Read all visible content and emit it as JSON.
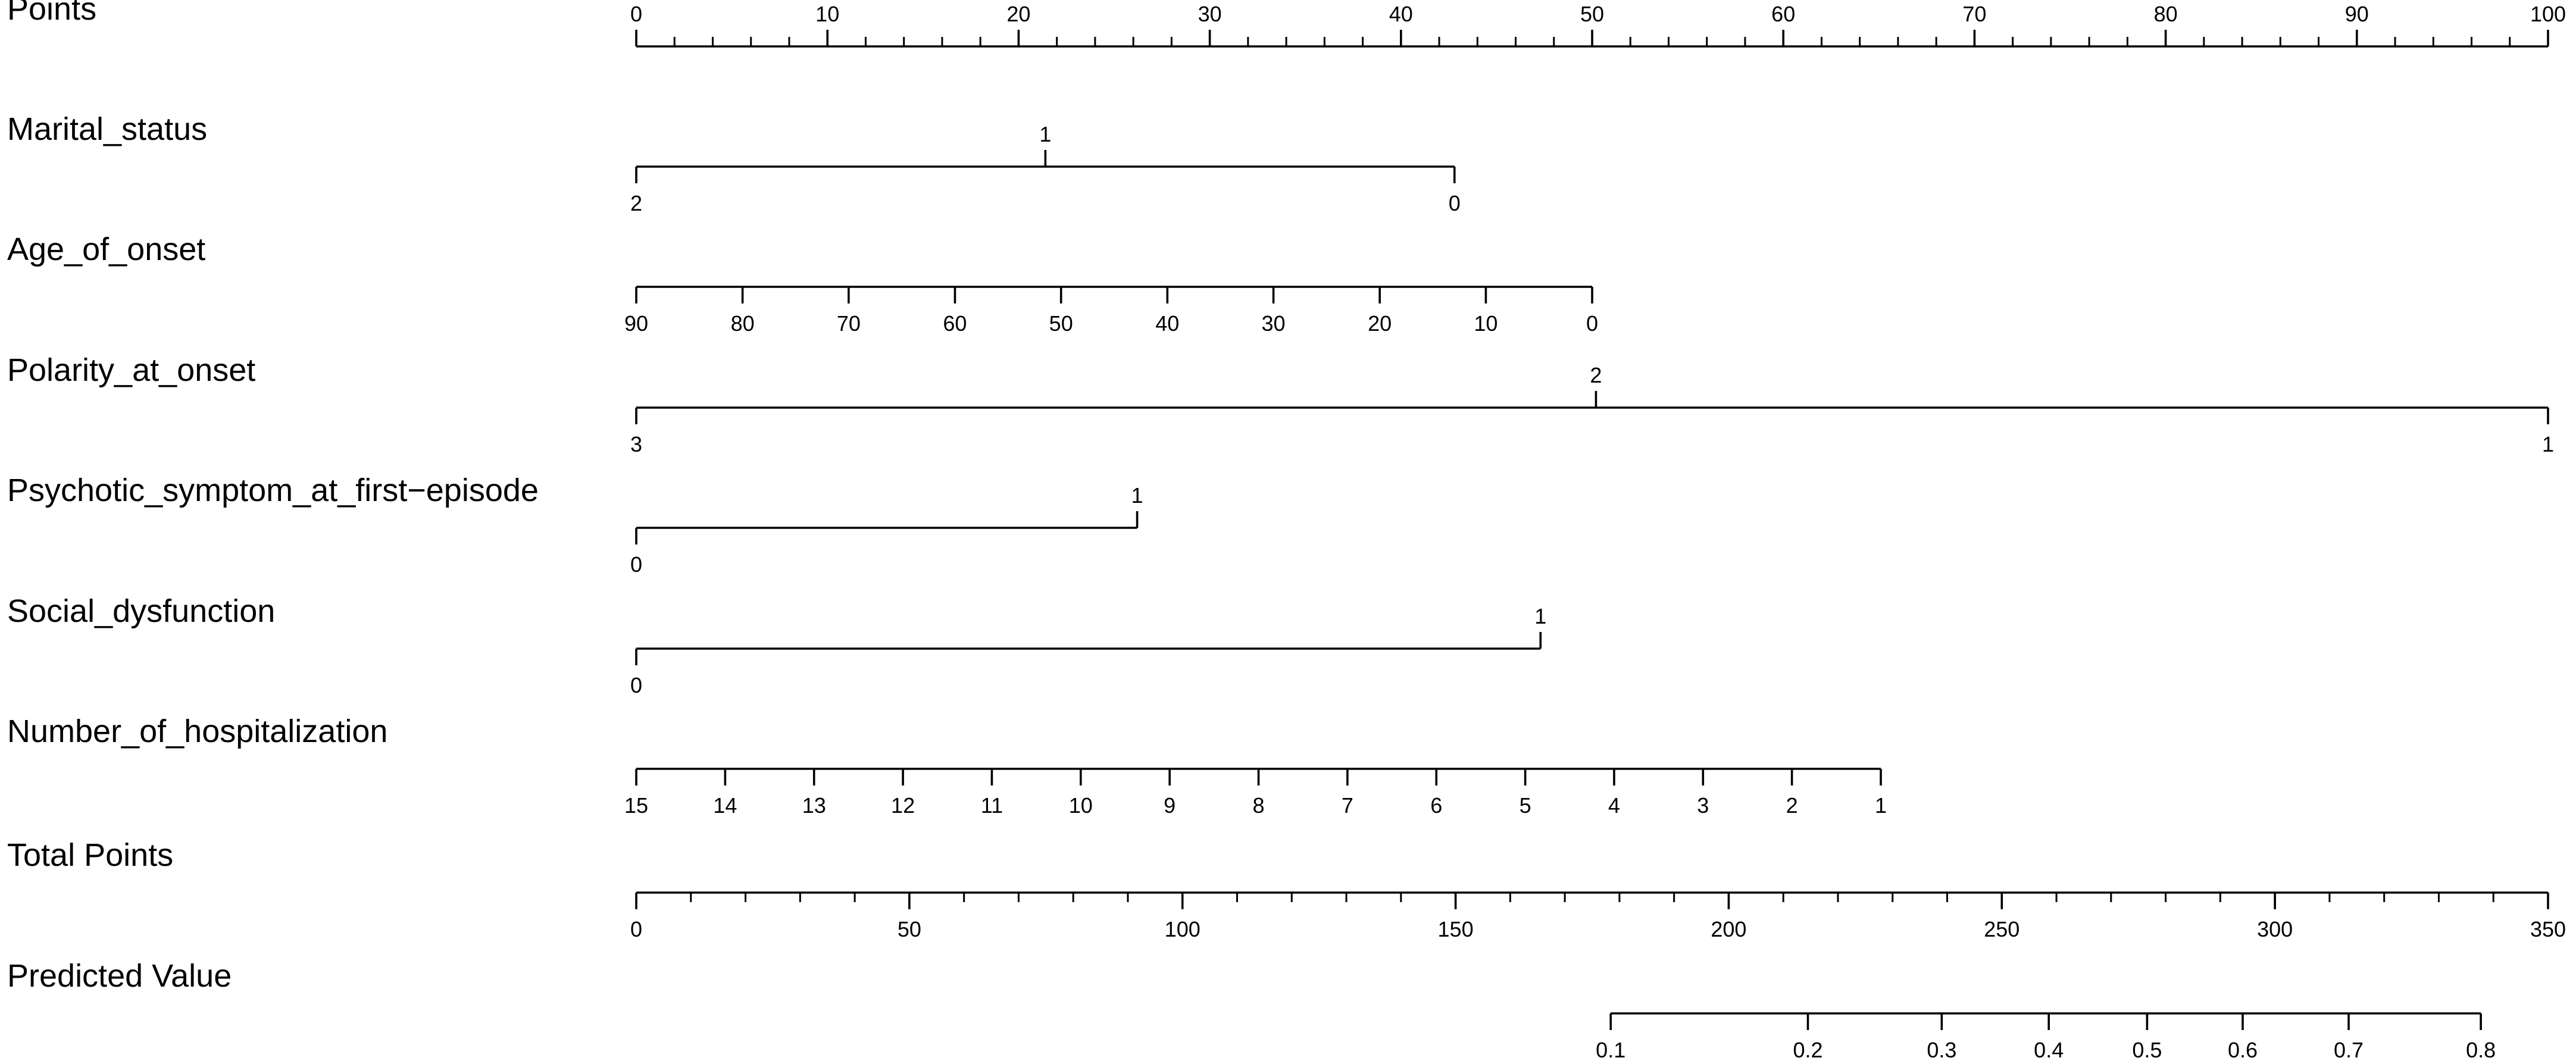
{
  "chart_data": {
    "type": "nomogram",
    "title": "",
    "rows": [
      {
        "id": "points",
        "label": "Points",
        "kind": "scale",
        "domain": [
          0,
          100
        ],
        "ticks": [
          {
            "value": 0,
            "label": "0"
          },
          {
            "value": 10,
            "label": "10"
          },
          {
            "value": 20,
            "label": "20"
          },
          {
            "value": 30,
            "label": "30"
          },
          {
            "value": 40,
            "label": "40"
          },
          {
            "value": 50,
            "label": "50"
          },
          {
            "value": 60,
            "label": "60"
          },
          {
            "value": 70,
            "label": "70"
          },
          {
            "value": 80,
            "label": "80"
          },
          {
            "value": 90,
            "label": "90"
          },
          {
            "value": 100,
            "label": "100"
          }
        ],
        "minor_step": 2,
        "label_side": "above"
      },
      {
        "id": "marital-status",
        "label": "Marital_status",
        "kind": "categorical",
        "ticks": [
          {
            "points": 0,
            "label": "2",
            "side": "below"
          },
          {
            "points": 21.4,
            "label": "1",
            "side": "above"
          },
          {
            "points": 42.8,
            "label": "0",
            "side": "below"
          }
        ]
      },
      {
        "id": "age-of-onset",
        "label": "Age_of_onset",
        "kind": "scale",
        "ticks": [
          {
            "points": 0,
            "label": "90"
          },
          {
            "points": 5.56,
            "label": "80"
          },
          {
            "points": 11.11,
            "label": "70"
          },
          {
            "points": 16.67,
            "label": "60"
          },
          {
            "points": 22.22,
            "label": "50"
          },
          {
            "points": 27.78,
            "label": "40"
          },
          {
            "points": 33.33,
            "label": "30"
          },
          {
            "points": 38.89,
            "label": "20"
          },
          {
            "points": 44.44,
            "label": "10"
          },
          {
            "points": 50.0,
            "label": "0"
          }
        ],
        "label_side": "below"
      },
      {
        "id": "polarity-at-onset",
        "label": "Polarity_at_onset",
        "kind": "categorical",
        "ticks": [
          {
            "points": 0,
            "label": "3",
            "side": "below"
          },
          {
            "points": 50.2,
            "label": "2",
            "side": "above"
          },
          {
            "points": 100,
            "label": "1",
            "side": "below"
          }
        ]
      },
      {
        "id": "psychotic-symptom",
        "label": "Psychotic_symptom_at_first−episode",
        "kind": "categorical",
        "ticks": [
          {
            "points": 0,
            "label": "0",
            "side": "below"
          },
          {
            "points": 26.2,
            "label": "1",
            "side": "above"
          }
        ]
      },
      {
        "id": "social-dysfunction",
        "label": "Social_dysfunction",
        "kind": "categorical",
        "ticks": [
          {
            "points": 0,
            "label": "0",
            "side": "below"
          },
          {
            "points": 47.3,
            "label": "1",
            "side": "above"
          }
        ]
      },
      {
        "id": "number-of-hospitalization",
        "label": "Number_of_hospitalization",
        "kind": "scale",
        "ticks": [
          {
            "points": 0,
            "label": "15"
          },
          {
            "points": 4.65,
            "label": "14"
          },
          {
            "points": 9.3,
            "label": "13"
          },
          {
            "points": 13.95,
            "label": "12"
          },
          {
            "points": 18.6,
            "label": "11"
          },
          {
            "points": 23.25,
            "label": "10"
          },
          {
            "points": 27.9,
            "label": "9"
          },
          {
            "points": 32.55,
            "label": "8"
          },
          {
            "points": 37.2,
            "label": "7"
          },
          {
            "points": 41.85,
            "label": "6"
          },
          {
            "points": 46.5,
            "label": "5"
          },
          {
            "points": 51.15,
            "label": "4"
          },
          {
            "points": 55.8,
            "label": "3"
          },
          {
            "points": 60.45,
            "label": "2"
          },
          {
            "points": 65.1,
            "label": "1"
          }
        ],
        "label_side": "below"
      },
      {
        "id": "total-points",
        "label": "Total Points",
        "kind": "scale",
        "domain": [
          0,
          350
        ],
        "ticks": [
          {
            "value": 0,
            "label": "0"
          },
          {
            "value": 50,
            "label": "50"
          },
          {
            "value": 100,
            "label": "100"
          },
          {
            "value": 150,
            "label": "150"
          },
          {
            "value": 200,
            "label": "200"
          },
          {
            "value": 250,
            "label": "250"
          },
          {
            "value": 300,
            "label": "300"
          },
          {
            "value": 350,
            "label": "350"
          }
        ],
        "minor_step": 10,
        "label_side": "below"
      },
      {
        "id": "predicted-value",
        "label": "Predicted Value",
        "kind": "scale",
        "ticks": [
          {
            "total_points": 178.4,
            "label": "0.1"
          },
          {
            "total_points": 214.5,
            "label": "0.2"
          },
          {
            "total_points": 239.0,
            "label": "0.3"
          },
          {
            "total_points": 258.6,
            "label": "0.4"
          },
          {
            "total_points": 276.6,
            "label": "0.5"
          },
          {
            "total_points": 294.1,
            "label": "0.6"
          },
          {
            "total_points": 313.5,
            "label": "0.7"
          },
          {
            "total_points": 337.7,
            "label": "0.8"
          }
        ],
        "label_side": "below"
      }
    ]
  }
}
